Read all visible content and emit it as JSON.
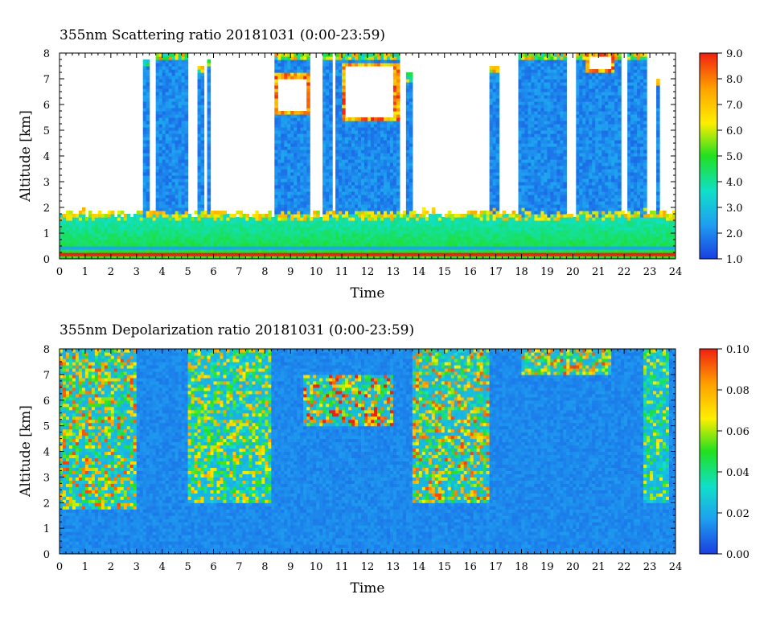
{
  "chart_data": [
    {
      "type": "heatmap",
      "title": "355nm Scattering ratio  20181031 (0:00-23:59)",
      "xlabel": "Time",
      "ylabel": "Altitude [km]",
      "xlim": [
        0,
        24
      ],
      "ylim": [
        0,
        8
      ],
      "x_ticks": [
        0,
        1,
        2,
        3,
        4,
        5,
        6,
        7,
        8,
        9,
        10,
        11,
        12,
        13,
        14,
        15,
        16,
        17,
        18,
        19,
        20,
        21,
        22,
        23,
        24
      ],
      "y_ticks": [
        0,
        1,
        2,
        3,
        4,
        5,
        6,
        7,
        8
      ],
      "colorbar": {
        "min": 1.0,
        "max": 9.0,
        "ticks": [
          "1.0",
          "2.0",
          "3.0",
          "4.0",
          "5.0",
          "6.0",
          "7.0",
          "8.0",
          "9.0"
        ],
        "colors": [
          "#1a3fe0",
          "#1ea0f0",
          "#10e0c8",
          "#20e020",
          "#ffee00",
          "#ffa000",
          "#f02010"
        ]
      },
      "features": {
        "boundary_layer": {
          "top_km": 1.8,
          "base_value": 4.0
        },
        "low_value_bands": [
          {
            "altitude_km": 0.2,
            "value": 9.0
          },
          {
            "altitude_km": 0.4,
            "value": 2.5
          }
        ],
        "cloud_columns": [
          {
            "t_start": 3.2,
            "t_end": 3.5,
            "top_km": 7.8
          },
          {
            "t_start": 3.8,
            "t_end": 5.0,
            "top_km": 8.0
          },
          {
            "t_start": 5.4,
            "t_end": 5.6,
            "top_km": 7.5
          },
          {
            "t_start": 5.8,
            "t_end": 5.9,
            "top_km": 7.8
          },
          {
            "t_start": 8.4,
            "t_end": 9.8,
            "top_km": 8.0
          },
          {
            "t_start": 10.3,
            "t_end": 10.6,
            "top_km": 8.0
          },
          {
            "t_start": 10.8,
            "t_end": 13.2,
            "top_km": 8.0
          },
          {
            "t_start": 13.5,
            "t_end": 13.7,
            "top_km": 7.2
          },
          {
            "t_start": 16.8,
            "t_end": 17.1,
            "top_km": 7.5
          },
          {
            "t_start": 17.9,
            "t_end": 19.8,
            "top_km": 8.0
          },
          {
            "t_start": 20.1,
            "t_end": 21.9,
            "top_km": 8.0
          },
          {
            "t_start": 22.1,
            "t_end": 22.9,
            "top_km": 8.0
          },
          {
            "t_start": 23.2,
            "t_end": 23.4,
            "top_km": 7.0
          }
        ],
        "saturated_clouds": [
          {
            "t_start": 8.4,
            "t_end": 9.8,
            "alt_low_km": 5.6,
            "alt_high_km": 7.2
          },
          {
            "t_start": 11.0,
            "t_end": 13.2,
            "alt_low_km": 5.4,
            "alt_high_km": 7.6
          },
          {
            "t_start": 20.5,
            "t_end": 21.6,
            "alt_low_km": 7.2,
            "alt_high_km": 8.0
          }
        ]
      }
    },
    {
      "type": "heatmap",
      "title": "355nm Depolarization ratio  20181031 (0:00-23:59)",
      "xlabel": "Time",
      "ylabel": "Altitude [km]",
      "xlim": [
        0,
        24
      ],
      "ylim": [
        0,
        8
      ],
      "x_ticks": [
        0,
        1,
        2,
        3,
        4,
        5,
        6,
        7,
        8,
        9,
        10,
        11,
        12,
        13,
        14,
        15,
        16,
        17,
        18,
        19,
        20,
        21,
        22,
        23,
        24
      ],
      "y_ticks": [
        0,
        1,
        2,
        3,
        4,
        5,
        6,
        7,
        8
      ],
      "colorbar": {
        "min": 0.0,
        "max": 0.1,
        "ticks": [
          "0.00",
          "0.02",
          "0.04",
          "0.06",
          "0.08",
          "0.10"
        ],
        "colors": [
          "#1a3fe0",
          "#1ea0f0",
          "#10e0c8",
          "#20e020",
          "#ffee00",
          "#ffa000",
          "#f02010"
        ]
      },
      "features": {
        "background_value": 0.01,
        "high_depol_regions": [
          {
            "t_start": 0.0,
            "t_end": 3.0,
            "alt_low_km": 1.8,
            "alt_high_km": 8.0,
            "value": 0.08
          },
          {
            "t_start": 5.0,
            "t_end": 8.3,
            "alt_low_km": 2.0,
            "alt_high_km": 8.0,
            "value": 0.07
          },
          {
            "t_start": 13.8,
            "t_end": 16.7,
            "alt_low_km": 2.0,
            "alt_high_km": 8.0,
            "value": 0.08
          },
          {
            "t_start": 9.5,
            "t_end": 13.0,
            "alt_low_km": 5.0,
            "alt_high_km": 7.0,
            "value": 0.09
          },
          {
            "t_start": 18.0,
            "t_end": 21.5,
            "alt_low_km": 7.0,
            "alt_high_km": 8.0,
            "value": 0.08
          },
          {
            "t_start": 22.8,
            "t_end": 23.8,
            "alt_low_km": 2.0,
            "alt_high_km": 8.0,
            "value": 0.06
          }
        ]
      }
    }
  ]
}
